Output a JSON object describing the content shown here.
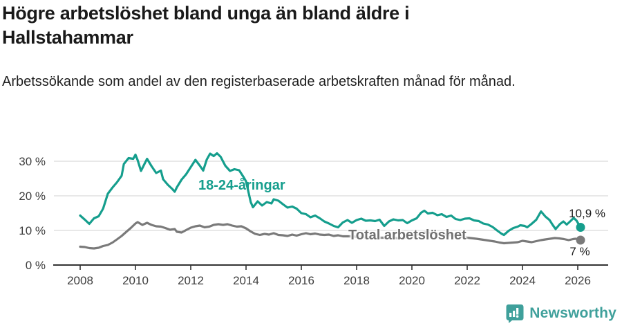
{
  "header": {
    "title": "Högre arbetslöshet bland unga än bland äldre i Hallstahammar",
    "subtitle": "Arbetssökande som andel av den registerbaserade arbetskraften månad för månad."
  },
  "colors": {
    "youth_line": "#159e8d",
    "total_line": "#7a7a7a",
    "total_label": "#717171",
    "grid": "#d9d9d9",
    "axis": "#333333",
    "tick_text": "#3d3d3d",
    "logo": "#3fa09b"
  },
  "footer": {
    "brand": "Newsworthy"
  },
  "chart_data": {
    "type": "line",
    "title": "Högre arbetslöshet bland unga än bland äldre i Hallstahammar",
    "subtitle": "Arbetssökande som andel av den registerbaserade arbetskraften månad för månad.",
    "xlabel": "",
    "ylabel": "",
    "grid": "horizontal",
    "legend_position": "inline",
    "xlim": [
      2007.05,
      2027.1
    ],
    "ylim": [
      0,
      37.6
    ],
    "x_ticks": [
      2008,
      2010,
      2012,
      2014,
      2016,
      2018,
      2020,
      2022,
      2024,
      2026
    ],
    "y_ticks": [
      {
        "value": 0,
        "label": "0 %"
      },
      {
        "value": 10,
        "label": "10 %"
      },
      {
        "value": 20,
        "label": "20 %"
      },
      {
        "value": 30,
        "label": "30 %"
      }
    ],
    "series": [
      {
        "name": "18-24-åringar",
        "color": "#159e8d",
        "end_label": "10,9 %",
        "end_value": 10.9,
        "points": [
          [
            2008.0,
            14.3
          ],
          [
            2008.17,
            13.1
          ],
          [
            2008.33,
            11.9
          ],
          [
            2008.5,
            13.5
          ],
          [
            2008.67,
            14.1
          ],
          [
            2008.83,
            16.3
          ],
          [
            2009.0,
            20.6
          ],
          [
            2009.17,
            22.4
          ],
          [
            2009.33,
            23.9
          ],
          [
            2009.5,
            25.8
          ],
          [
            2009.58,
            29.2
          ],
          [
            2009.75,
            30.9
          ],
          [
            2009.92,
            30.7
          ],
          [
            2010.0,
            31.9
          ],
          [
            2010.08,
            30.3
          ],
          [
            2010.2,
            27.2
          ],
          [
            2010.3,
            28.8
          ],
          [
            2010.42,
            30.7
          ],
          [
            2010.58,
            28.6
          ],
          [
            2010.75,
            26.6
          ],
          [
            2010.92,
            27.3
          ],
          [
            2011.0,
            24.8
          ],
          [
            2011.17,
            23.2
          ],
          [
            2011.33,
            22.0
          ],
          [
            2011.42,
            21.2
          ],
          [
            2011.5,
            22.5
          ],
          [
            2011.67,
            24.7
          ],
          [
            2011.83,
            26.2
          ],
          [
            2012.0,
            28.3
          ],
          [
            2012.17,
            30.4
          ],
          [
            2012.33,
            28.7
          ],
          [
            2012.45,
            27.3
          ],
          [
            2012.58,
            30.5
          ],
          [
            2012.7,
            32.2
          ],
          [
            2012.83,
            31.5
          ],
          [
            2012.95,
            32.3
          ],
          [
            2013.08,
            31.3
          ],
          [
            2013.25,
            28.7
          ],
          [
            2013.42,
            27.2
          ],
          [
            2013.58,
            27.7
          ],
          [
            2013.75,
            27.4
          ],
          [
            2013.92,
            25.3
          ],
          [
            2014.0,
            24.2
          ],
          [
            2014.17,
            18.2
          ],
          [
            2014.25,
            16.7
          ],
          [
            2014.42,
            18.4
          ],
          [
            2014.58,
            17.2
          ],
          [
            2014.75,
            18.2
          ],
          [
            2014.92,
            17.8
          ],
          [
            2015.0,
            19.0
          ],
          [
            2015.17,
            18.6
          ],
          [
            2015.33,
            17.6
          ],
          [
            2015.5,
            16.6
          ],
          [
            2015.67,
            16.9
          ],
          [
            2015.83,
            16.3
          ],
          [
            2016.0,
            15.0
          ],
          [
            2016.17,
            14.7
          ],
          [
            2016.33,
            13.8
          ],
          [
            2016.5,
            14.3
          ],
          [
            2016.67,
            13.5
          ],
          [
            2016.83,
            12.6
          ],
          [
            2017.0,
            12.0
          ],
          [
            2017.17,
            11.3
          ],
          [
            2017.33,
            10.9
          ],
          [
            2017.5,
            12.3
          ],
          [
            2017.67,
            13.0
          ],
          [
            2017.83,
            12.2
          ],
          [
            2018.0,
            13.0
          ],
          [
            2018.17,
            13.4
          ],
          [
            2018.33,
            12.8
          ],
          [
            2018.5,
            12.9
          ],
          [
            2018.67,
            12.7
          ],
          [
            2018.83,
            13.1
          ],
          [
            2019.0,
            11.3
          ],
          [
            2019.17,
            12.6
          ],
          [
            2019.33,
            13.2
          ],
          [
            2019.5,
            12.9
          ],
          [
            2019.67,
            13.0
          ],
          [
            2019.83,
            12.1
          ],
          [
            2020.0,
            12.9
          ],
          [
            2020.17,
            13.5
          ],
          [
            2020.33,
            15.1
          ],
          [
            2020.45,
            15.7
          ],
          [
            2020.58,
            14.9
          ],
          [
            2020.75,
            15.1
          ],
          [
            2020.92,
            14.4
          ],
          [
            2021.08,
            14.7
          ],
          [
            2021.25,
            13.9
          ],
          [
            2021.42,
            14.3
          ],
          [
            2021.58,
            13.3
          ],
          [
            2021.75,
            13.0
          ],
          [
            2021.92,
            13.4
          ],
          [
            2022.08,
            13.5
          ],
          [
            2022.25,
            12.9
          ],
          [
            2022.42,
            12.7
          ],
          [
            2022.58,
            12.0
          ],
          [
            2022.75,
            11.7
          ],
          [
            2022.92,
            11.0
          ],
          [
            2023.08,
            10.0
          ],
          [
            2023.25,
            9.0
          ],
          [
            2023.33,
            8.7
          ],
          [
            2023.5,
            9.9
          ],
          [
            2023.67,
            10.7
          ],
          [
            2023.83,
            11.1
          ],
          [
            2023.92,
            11.5
          ],
          [
            2024.08,
            11.3
          ],
          [
            2024.17,
            10.9
          ],
          [
            2024.33,
            11.9
          ],
          [
            2024.5,
            13.1
          ],
          [
            2024.67,
            15.5
          ],
          [
            2024.83,
            14.0
          ],
          [
            2024.98,
            13.0
          ],
          [
            2025.1,
            11.5
          ],
          [
            2025.2,
            10.4
          ],
          [
            2025.35,
            11.8
          ],
          [
            2025.48,
            12.6
          ],
          [
            2025.6,
            11.7
          ],
          [
            2025.75,
            12.8
          ],
          [
            2025.85,
            13.6
          ],
          [
            2025.95,
            12.9
          ],
          [
            2026.1,
            10.9
          ]
        ]
      },
      {
        "name": "Total arbetslöshet",
        "color": "#7a7a7a",
        "end_label": "7 %",
        "end_value": 7.0,
        "points": [
          [
            2008.0,
            5.3
          ],
          [
            2008.17,
            5.2
          ],
          [
            2008.33,
            4.9
          ],
          [
            2008.5,
            4.8
          ],
          [
            2008.67,
            5.0
          ],
          [
            2008.83,
            5.5
          ],
          [
            2009.0,
            5.8
          ],
          [
            2009.17,
            6.5
          ],
          [
            2009.33,
            7.4
          ],
          [
            2009.5,
            8.4
          ],
          [
            2009.67,
            9.6
          ],
          [
            2009.83,
            10.7
          ],
          [
            2010.0,
            12.0
          ],
          [
            2010.08,
            12.4
          ],
          [
            2010.25,
            11.6
          ],
          [
            2010.42,
            12.2
          ],
          [
            2010.58,
            11.6
          ],
          [
            2010.75,
            11.2
          ],
          [
            2010.92,
            11.1
          ],
          [
            2011.08,
            10.7
          ],
          [
            2011.25,
            10.2
          ],
          [
            2011.42,
            10.4
          ],
          [
            2011.5,
            9.6
          ],
          [
            2011.67,
            9.4
          ],
          [
            2011.83,
            10.1
          ],
          [
            2012.0,
            10.8
          ],
          [
            2012.17,
            11.2
          ],
          [
            2012.33,
            11.4
          ],
          [
            2012.5,
            10.9
          ],
          [
            2012.67,
            11.1
          ],
          [
            2012.83,
            11.6
          ],
          [
            2013.0,
            11.8
          ],
          [
            2013.17,
            11.6
          ],
          [
            2013.33,
            11.8
          ],
          [
            2013.5,
            11.4
          ],
          [
            2013.67,
            11.1
          ],
          [
            2013.83,
            11.2
          ],
          [
            2014.0,
            10.6
          ],
          [
            2014.17,
            9.7
          ],
          [
            2014.33,
            9.0
          ],
          [
            2014.5,
            8.7
          ],
          [
            2014.67,
            9.0
          ],
          [
            2014.83,
            8.8
          ],
          [
            2015.0,
            9.2
          ],
          [
            2015.17,
            8.7
          ],
          [
            2015.33,
            8.6
          ],
          [
            2015.5,
            8.4
          ],
          [
            2015.67,
            8.8
          ],
          [
            2015.83,
            8.5
          ],
          [
            2016.0,
            8.9
          ],
          [
            2016.17,
            9.2
          ],
          [
            2016.33,
            8.9
          ],
          [
            2016.5,
            9.1
          ],
          [
            2016.67,
            8.8
          ],
          [
            2016.83,
            8.7
          ],
          [
            2017.0,
            8.8
          ],
          [
            2017.17,
            8.4
          ],
          [
            2017.33,
            8.6
          ],
          [
            2017.5,
            8.3
          ],
          [
            2017.75,
            8.3
          ],
          [
            2018.0,
            8.2
          ],
          [
            2018.33,
            8.0
          ],
          [
            2018.67,
            7.9
          ],
          [
            2019.0,
            7.9
          ],
          [
            2019.33,
            7.8
          ],
          [
            2019.67,
            7.8
          ],
          [
            2020.0,
            8.3
          ],
          [
            2020.33,
            9.2
          ],
          [
            2020.5,
            9.4
          ],
          [
            2020.75,
            9.2
          ],
          [
            2021.0,
            9.0
          ],
          [
            2021.33,
            8.7
          ],
          [
            2021.67,
            8.3
          ],
          [
            2022.0,
            7.9
          ],
          [
            2022.33,
            7.6
          ],
          [
            2022.5,
            7.4
          ],
          [
            2022.67,
            7.2
          ],
          [
            2022.83,
            7.0
          ],
          [
            2023.0,
            6.8
          ],
          [
            2023.17,
            6.5
          ],
          [
            2023.33,
            6.3
          ],
          [
            2023.5,
            6.4
          ],
          [
            2023.67,
            6.5
          ],
          [
            2023.83,
            6.6
          ],
          [
            2024.0,
            7.0
          ],
          [
            2024.17,
            6.8
          ],
          [
            2024.33,
            6.6
          ],
          [
            2024.5,
            6.9
          ],
          [
            2024.67,
            7.2
          ],
          [
            2024.83,
            7.4
          ],
          [
            2025.0,
            7.6
          ],
          [
            2025.17,
            7.8
          ],
          [
            2025.33,
            7.7
          ],
          [
            2025.5,
            7.5
          ],
          [
            2025.67,
            7.2
          ],
          [
            2025.83,
            7.5
          ],
          [
            2025.92,
            7.6
          ],
          [
            2026.1,
            7.2
          ]
        ]
      }
    ]
  }
}
